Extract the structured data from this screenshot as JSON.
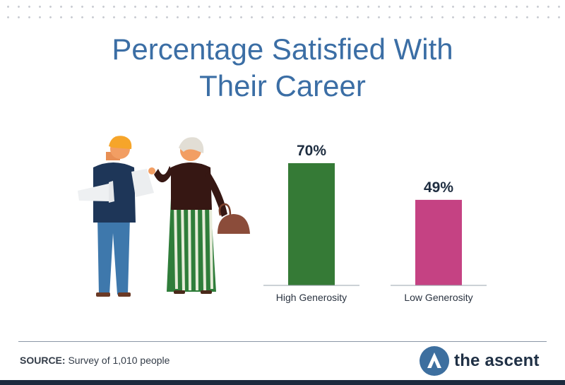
{
  "title": {
    "line1": "Percentage Satisfied With",
    "line2": "Their Career"
  },
  "chart_data": {
    "type": "bar",
    "title": "Percentage Satisfied With Their Career",
    "categories": [
      "High Generosity",
      "Low Generosity"
    ],
    "values": [
      70,
      49
    ],
    "value_labels": [
      "70%",
      "49%"
    ],
    "colors": [
      "#357a36",
      "#c54283"
    ],
    "ylim": [
      0,
      100
    ],
    "grid": false,
    "legend": "none"
  },
  "source": {
    "label": "SOURCE:",
    "text": "Survey of 1,010 people"
  },
  "brand": {
    "name": "the ascent"
  }
}
